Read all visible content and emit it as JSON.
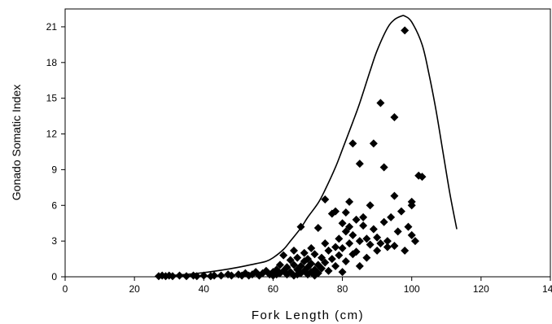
{
  "chart_data": {
    "type": "scatter",
    "title": "",
    "xlabel": "Fork Length (cm)",
    "ylabel": "Gonado Somatic Index",
    "xlim": [
      0,
      140
    ],
    "ylim": [
      0,
      22.5
    ],
    "xticks": [
      0,
      20,
      40,
      60,
      80,
      100,
      120,
      140
    ],
    "yticks": [
      0,
      3,
      6,
      9,
      12,
      15,
      18,
      21
    ],
    "xtick_labels": [
      "0",
      "20",
      "40",
      "60",
      "80",
      "100",
      "120",
      "140"
    ],
    "ytick_labels": [
      "0",
      "3",
      "6",
      "9",
      "12",
      "15",
      "18",
      "21"
    ],
    "grid": false,
    "legend": "none",
    "colors": {
      "points": "#000000",
      "curve": "#000000",
      "frame": "#000000"
    },
    "series": [
      {
        "type": "scatter",
        "marker": "diamond",
        "points": [
          [
            27,
            0.05
          ],
          [
            28,
            0.1
          ],
          [
            29,
            0.05
          ],
          [
            30,
            0.1
          ],
          [
            31,
            0.05
          ],
          [
            33,
            0.1
          ],
          [
            35,
            0.05
          ],
          [
            37,
            0.1
          ],
          [
            38,
            0.05
          ],
          [
            40,
            0.1
          ],
          [
            42,
            0.05
          ],
          [
            43,
            0.1
          ],
          [
            45,
            0.1
          ],
          [
            47,
            0.2
          ],
          [
            48,
            0.1
          ],
          [
            50,
            0.2
          ],
          [
            51,
            0.1
          ],
          [
            52,
            0.3
          ],
          [
            53,
            0.1
          ],
          [
            54,
            0.2
          ],
          [
            55,
            0.4
          ],
          [
            56,
            0.1
          ],
          [
            57,
            0.3
          ],
          [
            58,
            0.5
          ],
          [
            59,
            0.2
          ],
          [
            60,
            0.1
          ],
          [
            60,
            0.4
          ],
          [
            61,
            0.6
          ],
          [
            61,
            0.2
          ],
          [
            62,
            1.0
          ],
          [
            62,
            0.3
          ],
          [
            63,
            0.5
          ],
          [
            63,
            1.8
          ],
          [
            64,
            0.2
          ],
          [
            64,
            0.8
          ],
          [
            65,
            1.4
          ],
          [
            65,
            0.4
          ],
          [
            66,
            0.1
          ],
          [
            66,
            1.0
          ],
          [
            66,
            2.2
          ],
          [
            67,
            0.6
          ],
          [
            67,
            1.6
          ],
          [
            67,
            0.2
          ],
          [
            68,
            0.9
          ],
          [
            68,
            4.2
          ],
          [
            68,
            0.3
          ],
          [
            69,
            1.3
          ],
          [
            69,
            0.5
          ],
          [
            69,
            2.0
          ],
          [
            70,
            0.2
          ],
          [
            70,
            0.8
          ],
          [
            70,
            1.5
          ],
          [
            71,
            0.4
          ],
          [
            71,
            1.1
          ],
          [
            71,
            2.4
          ],
          [
            72,
            0.6
          ],
          [
            72,
            1.9
          ],
          [
            72,
            0.1
          ],
          [
            73,
            1.0
          ],
          [
            73,
            0.3
          ],
          [
            73,
            4.1
          ],
          [
            74,
            1.6
          ],
          [
            74,
            0.7
          ],
          [
            75,
            2.8
          ],
          [
            75,
            1.2
          ],
          [
            75,
            6.5
          ],
          [
            76,
            0.5
          ],
          [
            76,
            2.2
          ],
          [
            77,
            5.3
          ],
          [
            77,
            1.5
          ],
          [
            78,
            0.9
          ],
          [
            78,
            2.5
          ],
          [
            78,
            5.5
          ],
          [
            79,
            3.2
          ],
          [
            79,
            1.8
          ],
          [
            80,
            0.4
          ],
          [
            80,
            4.5
          ],
          [
            80,
            2.4
          ],
          [
            81,
            3.8
          ],
          [
            81,
            5.4
          ],
          [
            81,
            1.3
          ],
          [
            82,
            4.2
          ],
          [
            82,
            2.8
          ],
          [
            82,
            6.3
          ],
          [
            83,
            11.2
          ],
          [
            83,
            3.5
          ],
          [
            83,
            1.9
          ],
          [
            84,
            4.8
          ],
          [
            84,
            2.1
          ],
          [
            85,
            9.5
          ],
          [
            85,
            3.0
          ],
          [
            85,
            0.9
          ],
          [
            86,
            4.3
          ],
          [
            86,
            5.0
          ],
          [
            87,
            3.2
          ],
          [
            87,
            1.6
          ],
          [
            88,
            6.0
          ],
          [
            88,
            2.7
          ],
          [
            89,
            11.2
          ],
          [
            89,
            4.0
          ],
          [
            90,
            2.2
          ],
          [
            90,
            3.3
          ],
          [
            91,
            14.6
          ],
          [
            91,
            2.8
          ],
          [
            92,
            9.2
          ],
          [
            92,
            4.6
          ],
          [
            93,
            2.5
          ],
          [
            93,
            3.0
          ],
          [
            94,
            5.0
          ],
          [
            95,
            13.4
          ],
          [
            95,
            2.6
          ],
          [
            95,
            6.8
          ],
          [
            96,
            3.8
          ],
          [
            97,
            5.5
          ],
          [
            98,
            20.7
          ],
          [
            98,
            2.2
          ],
          [
            99,
            4.2
          ],
          [
            100,
            6.3
          ],
          [
            100,
            6.0
          ],
          [
            100,
            3.5
          ],
          [
            101,
            3.0
          ],
          [
            102,
            8.5
          ],
          [
            103,
            8.4
          ]
        ]
      },
      {
        "type": "line",
        "points": [
          [
            27,
            0.05
          ],
          [
            30,
            0.1
          ],
          [
            35,
            0.2
          ],
          [
            40,
            0.35
          ],
          [
            45,
            0.55
          ],
          [
            50,
            0.8
          ],
          [
            55,
            1.1
          ],
          [
            58,
            1.3
          ],
          [
            60,
            1.6
          ],
          [
            63,
            2.3
          ],
          [
            65,
            3.0
          ],
          [
            68,
            4.1
          ],
          [
            70,
            5.0
          ],
          [
            73,
            6.2
          ],
          [
            75,
            7.3
          ],
          [
            78,
            9.2
          ],
          [
            80,
            10.7
          ],
          [
            83,
            13.0
          ],
          [
            85,
            14.6
          ],
          [
            88,
            17.3
          ],
          [
            90,
            19.0
          ],
          [
            93,
            20.9
          ],
          [
            95,
            21.6
          ],
          [
            97,
            21.9
          ],
          [
            98,
            21.9
          ],
          [
            100,
            21.4
          ],
          [
            103,
            19.5
          ],
          [
            105,
            17.0
          ],
          [
            107,
            14.0
          ],
          [
            109,
            10.5
          ],
          [
            111,
            7.0
          ],
          [
            113,
            4.0
          ]
        ]
      }
    ]
  }
}
